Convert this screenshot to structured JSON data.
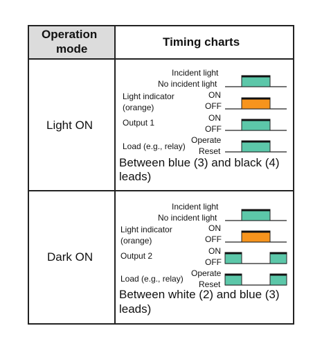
{
  "header": {
    "operation_mode_line1": "Operation",
    "operation_mode_line2": "mode",
    "timing_charts": "Timing charts"
  },
  "rows": [
    {
      "mode": "Light ON",
      "labels": {
        "incident": "Incident light",
        "no_incident": "No incident light",
        "indicator_line1": "Light indicator",
        "indicator_line2": "(orange)",
        "on1": "ON",
        "off1": "OFF",
        "output": "Output 1",
        "on2": "ON",
        "off2": "OFF",
        "load": "Load (e.g., relay)",
        "operate": "Operate",
        "reset": "Reset"
      },
      "description_line1": "Between blue (3) and black (4)",
      "description_line2": "leads)"
    },
    {
      "mode": "Dark ON",
      "labels": {
        "incident": "Incident light",
        "no_incident": "No incident light",
        "indicator_line1": "Light indicator",
        "indicator_line2": "(orange)",
        "on1": "ON",
        "off1": "OFF",
        "output": "Output 2",
        "on2": "ON",
        "off2": "OFF",
        "load": "Load (e.g., relay)",
        "operate": "Operate",
        "reset": "Reset"
      },
      "description_line1": "Between white (2) and blue (3)",
      "description_line2": "leads)"
    }
  ],
  "colors": {
    "pulse_teal": "#5cc7a9",
    "pulse_orange": "#f7941d",
    "header_bg": "#dcdcdc",
    "line": "#222222"
  }
}
